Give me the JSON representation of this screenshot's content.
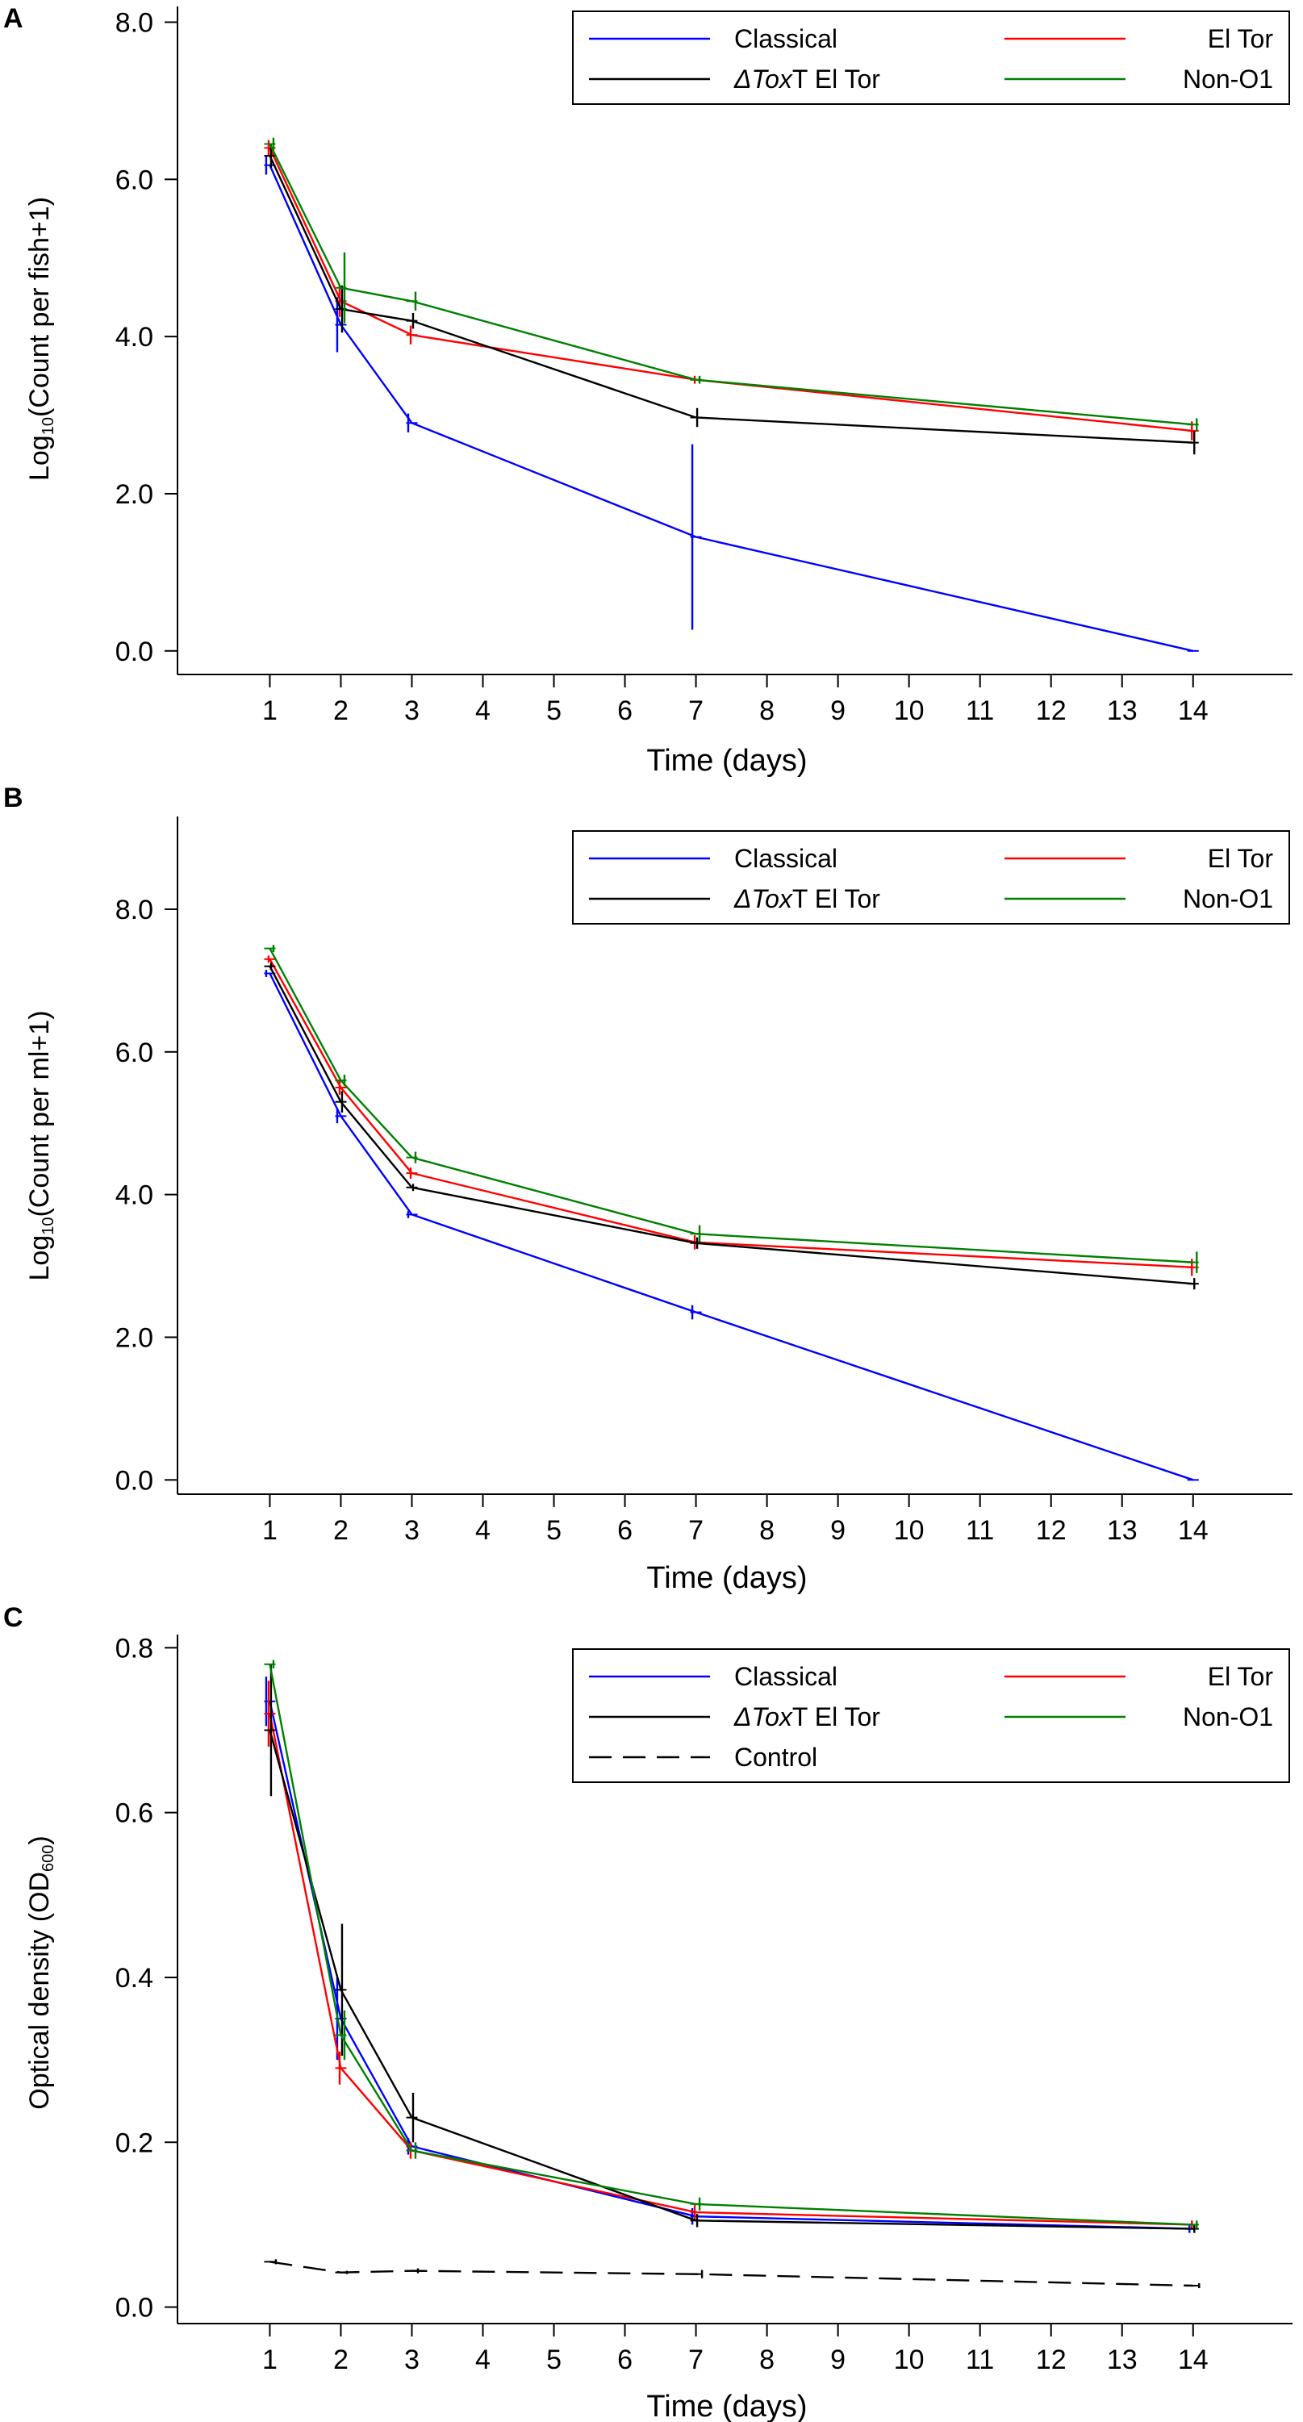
{
  "chart_data": [
    {
      "type": "line",
      "panel_label": "A",
      "xlabel": "Time (days)",
      "ylabel_prefix": "Log",
      "ylabel_sub": "10",
      "ylabel_rest": "(Count per fish+1)",
      "x_ticks": [
        "1",
        "2",
        "3",
        "4",
        "5",
        "6",
        "7",
        "8",
        "9",
        "10",
        "11",
        "12",
        "13",
        "14"
      ],
      "y_ticks": [
        "0.0",
        "2.0",
        "4.0",
        "6.0",
        "8.0"
      ],
      "y_tick_values": [
        0,
        2,
        4,
        6,
        8
      ],
      "xlim": [
        -0.3,
        15.4
      ],
      "ylim": [
        -0.3,
        8.2
      ],
      "legend_position": "top-right",
      "legend_layout": "2col",
      "legend": {
        "classical": "Classical",
        "eltor": "El Tor",
        "toxt_prefix": "ΔTox",
        "toxt_suffix": "T El Tor",
        "nono1": "Non-O1"
      },
      "series": [
        {
          "name": "Classical",
          "key": "classical",
          "color": "#0000ff",
          "dash": "",
          "x": [
            1,
            2,
            3,
            7,
            14
          ],
          "y": [
            6.18,
            4.15,
            2.9,
            1.45,
            0.0
          ],
          "err": [
            0.12,
            0.35,
            0.12,
            1.18,
            0.0
          ]
        },
        {
          "name": "El Tor",
          "key": "eltor",
          "color": "#ff0000",
          "dash": "",
          "x": [
            1,
            2,
            3,
            7,
            14
          ],
          "y": [
            6.4,
            4.45,
            4.02,
            3.45,
            2.8
          ],
          "err": [
            0.1,
            0.2,
            0.12,
            0.05,
            0.12
          ]
        },
        {
          "name": "ΔToxT El Tor",
          "key": "toxt",
          "color": "#000000",
          "dash": "",
          "x": [
            1,
            2,
            3,
            7,
            14
          ],
          "y": [
            6.3,
            4.35,
            4.2,
            2.97,
            2.65
          ],
          "err": [
            0.15,
            0.3,
            0.1,
            0.12,
            0.15
          ]
        },
        {
          "name": "Non-O1",
          "key": "nono1",
          "color": "#008000",
          "dash": "",
          "x": [
            1,
            2,
            3,
            7,
            14
          ],
          "y": [
            6.45,
            4.62,
            4.45,
            3.45,
            2.88
          ],
          "err": [
            0.08,
            0.45,
            0.12,
            0.05,
            0.08
          ]
        }
      ]
    },
    {
      "type": "line",
      "panel_label": "B",
      "xlabel": "Time (days)",
      "ylabel_prefix": "Log",
      "ylabel_sub": "10",
      "ylabel_rest": "(Count per ml+1)",
      "x_ticks": [
        "1",
        "2",
        "3",
        "4",
        "5",
        "6",
        "7",
        "8",
        "9",
        "10",
        "11",
        "12",
        "13",
        "14"
      ],
      "y_ticks": [
        "0.0",
        "2.0",
        "4.0",
        "6.0",
        "8.0"
      ],
      "y_tick_values": [
        0,
        2,
        4,
        6,
        8
      ],
      "xlim": [
        -0.3,
        15.4
      ],
      "ylim": [
        -0.2,
        9.3
      ],
      "legend_position": "top-right",
      "legend_layout": "2col",
      "legend": {
        "classical": "Classical",
        "eltor": "El Tor",
        "toxt_prefix": "ΔTox",
        "toxt_suffix": "T El Tor",
        "nono1": "Non-O1"
      },
      "series": [
        {
          "name": "Classical",
          "key": "classical",
          "color": "#0000ff",
          "dash": "",
          "x": [
            1,
            2,
            3,
            7,
            14
          ],
          "y": [
            7.1,
            5.1,
            3.72,
            2.35,
            0.0
          ],
          "err": [
            0.05,
            0.1,
            0.05,
            0.1,
            0.0
          ]
        },
        {
          "name": "El Tor",
          "key": "eltor",
          "color": "#ff0000",
          "dash": "",
          "x": [
            1,
            2,
            3,
            7,
            14
          ],
          "y": [
            7.3,
            5.5,
            4.3,
            3.33,
            2.98
          ],
          "err": [
            0.05,
            0.1,
            0.08,
            0.1,
            0.12
          ]
        },
        {
          "name": "ΔToxT El Tor",
          "key": "toxt",
          "color": "#000000",
          "dash": "",
          "x": [
            1,
            2,
            3,
            7,
            14
          ],
          "y": [
            7.2,
            5.3,
            4.1,
            3.32,
            2.75
          ],
          "err": [
            0.05,
            0.15,
            0.05,
            0.08,
            0.08
          ]
        },
        {
          "name": "Non-O1",
          "key": "nono1",
          "color": "#008000",
          "dash": "",
          "x": [
            1,
            2,
            3,
            7,
            14
          ],
          "y": [
            7.45,
            5.6,
            4.52,
            3.45,
            3.05
          ],
          "err": [
            0.05,
            0.08,
            0.08,
            0.12,
            0.15
          ]
        }
      ]
    },
    {
      "type": "line",
      "panel_label": "C",
      "xlabel": "Time (days)",
      "ylabel_prefix": "Optical density (OD",
      "ylabel_sub": "600",
      "ylabel_rest": ")",
      "x_ticks": [
        "1",
        "2",
        "3",
        "4",
        "5",
        "6",
        "7",
        "8",
        "9",
        "10",
        "11",
        "12",
        "13",
        "14"
      ],
      "y_ticks": [
        "0.0",
        "0.2",
        "0.4",
        "0.6",
        "0.8"
      ],
      "y_tick_values": [
        0,
        0.2,
        0.4,
        0.6,
        0.8
      ],
      "xlim": [
        -0.3,
        15.4
      ],
      "ylim": [
        -0.02,
        0.816
      ],
      "legend_position": "top-right",
      "legend_layout": "2col-plus-control",
      "legend": {
        "classical": "Classical",
        "eltor": "El Tor",
        "toxt_prefix": "ΔTox",
        "toxt_suffix": "T El Tor",
        "nono1": "Non-O1",
        "control": "Control"
      },
      "series": [
        {
          "name": "Classical",
          "key": "classical",
          "color": "#0000ff",
          "dash": "",
          "x": [
            1,
            2,
            3,
            7,
            14
          ],
          "y": [
            0.735,
            0.35,
            0.195,
            0.11,
            0.095
          ],
          "err": [
            0.03,
            0.05,
            0.01,
            0.01,
            0.005
          ]
        },
        {
          "name": "El Tor",
          "key": "eltor",
          "color": "#ff0000",
          "dash": "",
          "x": [
            1,
            2,
            3,
            7,
            14
          ],
          "y": [
            0.72,
            0.29,
            0.19,
            0.115,
            0.1
          ],
          "err": [
            0.04,
            0.02,
            0.01,
            0.01,
            0.005
          ]
        },
        {
          "name": "ΔToxT El Tor",
          "key": "toxt",
          "color": "#000000",
          "dash": "",
          "x": [
            1,
            2,
            3,
            7,
            14
          ],
          "y": [
            0.7,
            0.385,
            0.23,
            0.105,
            0.095
          ],
          "err": [
            0.08,
            0.08,
            0.03,
            0.008,
            0.005
          ]
        },
        {
          "name": "Non-O1",
          "key": "nono1",
          "color": "#008000",
          "dash": "",
          "x": [
            1,
            2,
            3,
            7,
            14
          ],
          "y": [
            0.78,
            0.33,
            0.19,
            0.125,
            0.1
          ],
          "err": [
            0.005,
            0.03,
            0.01,
            0.008,
            0.005
          ]
        },
        {
          "name": "Control",
          "key": "control",
          "color": "#000000",
          "dash": "28 14",
          "x": [
            1,
            2,
            3,
            7,
            14
          ],
          "y": [
            0.055,
            0.042,
            0.044,
            0.04,
            0.026
          ],
          "err": [
            0.003,
            0.002,
            0.003,
            0.005,
            0.003
          ]
        }
      ]
    }
  ]
}
